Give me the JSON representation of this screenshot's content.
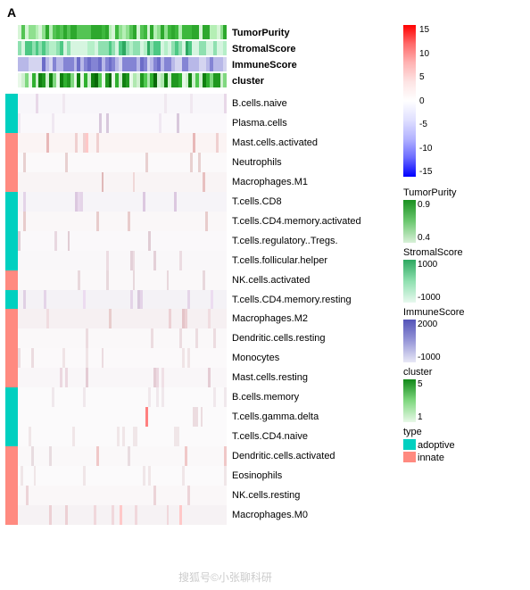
{
  "panel_label": "A",
  "annotation_tracks": [
    {
      "name": "TumorPurity",
      "colors": [
        "#2da82d",
        "#54c454",
        "#2da82d",
        "#d6f5d6",
        "#2da82d",
        "#8fe08f",
        "#3db83d",
        "#b5efb5",
        "#2da82d",
        "#54c454"
      ]
    },
    {
      "name": "StromalScore",
      "colors": [
        "#8fe0b0",
        "#d6f5e0",
        "#4dc884",
        "#b5efc8",
        "#2da860",
        "#8fe0b0",
        "#d6f5e0",
        "#4dc884",
        "#8fe0b0",
        "#d6f5e0"
      ]
    },
    {
      "name": "ImmuneScore",
      "colors": [
        "#b8b8e8",
        "#8484d4",
        "#b8b8e8",
        "#d4d4f0",
        "#8484d4",
        "#6c6cc8",
        "#b8b8e8",
        "#d4d4f0",
        "#8484d4",
        "#b8b8e8"
      ]
    },
    {
      "name": "cluster",
      "colors": [
        "#e8f8e8",
        "#e8f8e8",
        "#d0f0d0",
        "#b0e8b0",
        "#80d880",
        "#50c850",
        "#30b030",
        "#209820",
        "#108010",
        "#086808"
      ]
    }
  ],
  "rows": [
    {
      "label": "B.cells.naive",
      "type": "adoptive",
      "bg": "#f8f6fa",
      "stripes": [
        "#e8d8e8",
        "#e0c8e0",
        "#f0e8f0"
      ]
    },
    {
      "label": "Plasma.cells",
      "type": "adoptive",
      "bg": "#faf8fb",
      "stripes": [
        "#d8c8dc",
        "#f0e8f2"
      ]
    },
    {
      "label": "Mast.cells.activated",
      "type": "innate",
      "bg": "#fbf4f4",
      "stripes": [
        "#e8b8b8",
        "#f0d0d0",
        "#ffc8c8"
      ]
    },
    {
      "label": "Neutrophils",
      "type": "innate",
      "bg": "#fbf9fa",
      "stripes": [
        "#e8d0d0"
      ]
    },
    {
      "label": "Macrophages.M1",
      "type": "innate",
      "bg": "#f9f4f5",
      "stripes": [
        "#e8c0c0",
        "#f0d8d8",
        "#e0b8b8"
      ]
    },
    {
      "label": "T.cells.CD8",
      "type": "adoptive",
      "bg": "#f6f4f8",
      "stripes": [
        "#e8d8ec",
        "#dcc8e0",
        "#e4d4e8"
      ]
    },
    {
      "label": "T.cells.CD4.memory.activated",
      "type": "adoptive",
      "bg": "#faf7f8",
      "stripes": [
        "#f0d8dc",
        "#e8cccc"
      ]
    },
    {
      "label": "T.cells.regulatory..Tregs.",
      "type": "adoptive",
      "bg": "#faf8fa",
      "stripes": [
        "#e8d8e0",
        "#e0ccd4"
      ]
    },
    {
      "label": "T.cells.follicular.helper",
      "type": "adoptive",
      "bg": "#f9f7f9",
      "stripes": [
        "#ecdce2",
        "#e4d0d8"
      ]
    },
    {
      "label": "NK.cells.activated",
      "type": "innate",
      "bg": "#faf8f9",
      "stripes": [
        "#e8d8dc"
      ]
    },
    {
      "label": "T.cells.CD4.memory.resting",
      "type": "adoptive",
      "bg": "#f4f2f6",
      "stripes": [
        "#e4d4e8",
        "#ecdcf0",
        "#d8c8dc",
        "#e0d0e4"
      ]
    },
    {
      "label": "Macrophages.M2",
      "type": "innate",
      "bg": "#f6f0f2",
      "stripes": [
        "#ecd0d4",
        "#e4c4c8",
        "#f0dce0",
        "#e8cccc"
      ]
    },
    {
      "label": "Dendritic.cells.resting",
      "type": "innate",
      "bg": "#faf8f9",
      "stripes": [
        "#ecdce0"
      ]
    },
    {
      "label": "Monocytes",
      "type": "innate",
      "bg": "#fbf9fa",
      "stripes": [
        "#ecdce0",
        "#f0e4e6"
      ]
    },
    {
      "label": "Mast.cells.resting",
      "type": "innate",
      "bg": "#f9f6f8",
      "stripes": [
        "#ecd8e0",
        "#e4ccd4",
        "#f0e0e6"
      ]
    },
    {
      "label": "B.cells.memory",
      "type": "adoptive",
      "bg": "#fbfafb",
      "stripes": [
        "#f0e8ec"
      ]
    },
    {
      "label": "T.cells.gamma.delta",
      "type": "adoptive",
      "bg": "#fbfafb",
      "stripes": [
        "#ff8080",
        "#ecdce0"
      ]
    },
    {
      "label": "T.cells.CD4.naive",
      "type": "adoptive",
      "bg": "#fbfafb",
      "stripes": [
        "#f0e6e8"
      ]
    },
    {
      "label": "Dendritic.cells.activated",
      "type": "innate",
      "bg": "#faf8f9",
      "stripes": [
        "#f0c8c8",
        "#e8dce0"
      ]
    },
    {
      "label": "Eosinophils",
      "type": "innate",
      "bg": "#fbfafb",
      "stripes": [
        "#f0e6e8"
      ]
    },
    {
      "label": "NK.cells.resting",
      "type": "innate",
      "bg": "#faf7f8",
      "stripes": [
        "#ecd4d8",
        "#f0dce0"
      ]
    },
    {
      "label": "Macrophages.M0",
      "type": "innate",
      "bg": "#f6f2f4",
      "stripes": [
        "#ecd0d4",
        "#f0d8dc",
        "#e4c8cc",
        "#ffc8c8"
      ]
    }
  ],
  "type_colors": {
    "adoptive": "#00d0c0",
    "innate": "#ff8a80"
  },
  "colorbar": {
    "ticks": [
      "15",
      "10",
      "5",
      "0",
      "-5",
      "-10",
      "-15"
    ]
  },
  "legends": {
    "TumorPurity": {
      "gradient": [
        "#1a9020",
        "#6cc870",
        "#d8f0d8"
      ],
      "labels": [
        "0.9",
        "",
        "0.4"
      ]
    },
    "StromalScore": {
      "gradient": [
        "#2da860",
        "#8fe0b0",
        "#e8f8ef"
      ],
      "labels": [
        "1000",
        "",
        "-1000"
      ]
    },
    "ImmuneScore": {
      "gradient": [
        "#5454b8",
        "#9898d8",
        "#e8e8f6"
      ],
      "labels": [
        "2000",
        "",
        "-1000"
      ]
    },
    "cluster": {
      "gradient": [
        "#108818",
        "#80d880",
        "#e8f8e8"
      ],
      "labels": [
        "5",
        "",
        "1"
      ]
    },
    "type": [
      {
        "label": "adoptive",
        "color": "#00d0c0"
      },
      {
        "label": "innate",
        "color": "#ff8a80"
      }
    ]
  },
  "watermark": "搜狐号©小张聊科研"
}
